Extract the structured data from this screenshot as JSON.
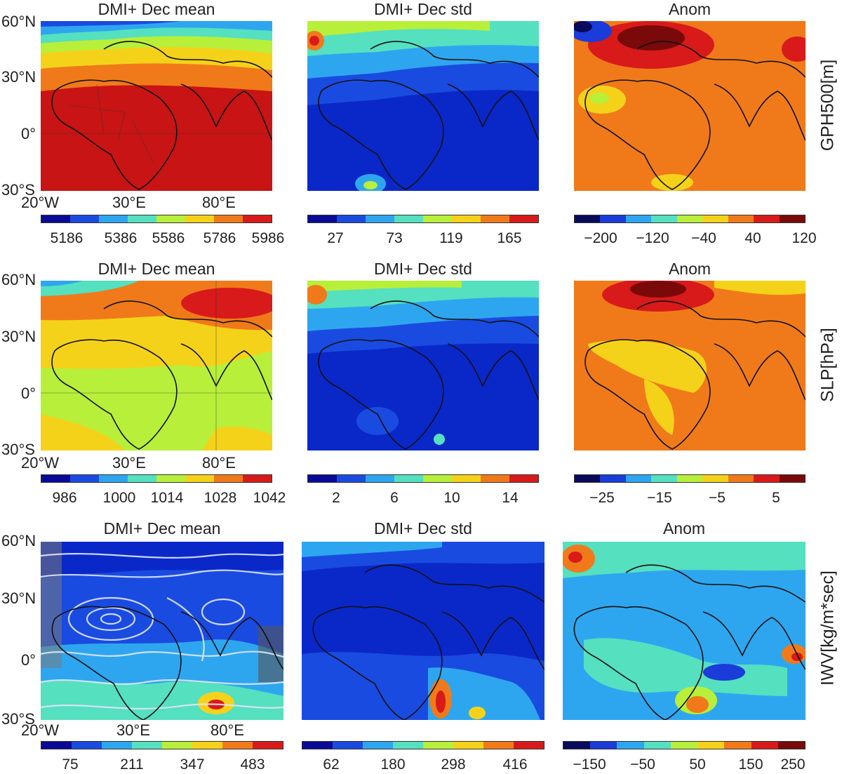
{
  "rows": [
    {
      "label": "GPH500[m]",
      "panels": [
        {
          "title": "DMI+ Dec mean",
          "ticks": [
            "5186",
            "5386",
            "5586",
            "5786",
            "5986"
          ]
        },
        {
          "title": "DMI+ Dec std",
          "ticks": [
            "27",
            "73",
            "119",
            "165"
          ]
        },
        {
          "title": "Anom",
          "ticks": [
            "−200",
            "−120",
            "−40",
            "40",
            "120"
          ]
        }
      ]
    },
    {
      "label": "SLP[hPa]",
      "panels": [
        {
          "title": "DMI+ Dec mean",
          "ticks": [
            "986",
            "1000",
            "1014",
            "1028",
            "1042"
          ]
        },
        {
          "title": "DMI+ Dec std",
          "ticks": [
            "2",
            "6",
            "10",
            "14"
          ]
        },
        {
          "title": "Anom",
          "ticks": [
            "−25",
            "−15",
            "−5",
            "5"
          ]
        }
      ]
    },
    {
      "label": "IWV[kg/m*sec]",
      "panels": [
        {
          "title": "DMI+ Dec mean",
          "ticks": [
            "75",
            "211",
            "347",
            "483"
          ]
        },
        {
          "title": "DMI+ Dec std",
          "ticks": [
            "62",
            "180",
            "298",
            "416"
          ]
        },
        {
          "title": "Anom",
          "ticks": [
            "−150",
            "−50",
            "50",
            "150",
            "250"
          ]
        }
      ]
    }
  ],
  "lat_labels": [
    "60°N",
    "30°N",
    "0°",
    "30°S"
  ],
  "lon_labels": [
    "20°W",
    "30°E",
    "80°E"
  ],
  "colors": {
    "jet8": [
      "#0a0a96",
      "#1a4be0",
      "#2ea6ef",
      "#55e0c0",
      "#b8ef3a",
      "#f5d21a",
      "#f07a1a",
      "#d81a1a"
    ],
    "anom9": [
      "#0a0a5a",
      "#1a3cd8",
      "#2ea6ef",
      "#55e0c0",
      "#b8ef3a",
      "#f5d21a",
      "#f07a1a",
      "#d81a1a",
      "#7a0a0a"
    ],
    "jet12": [
      "#0a0a96",
      "#1030c8",
      "#1a60e6",
      "#20a0f0",
      "#40d0e8",
      "#70e8b0",
      "#b0f060",
      "#e8e830",
      "#f8b020",
      "#f07018",
      "#e03018",
      "#a00a0a"
    ]
  }
}
